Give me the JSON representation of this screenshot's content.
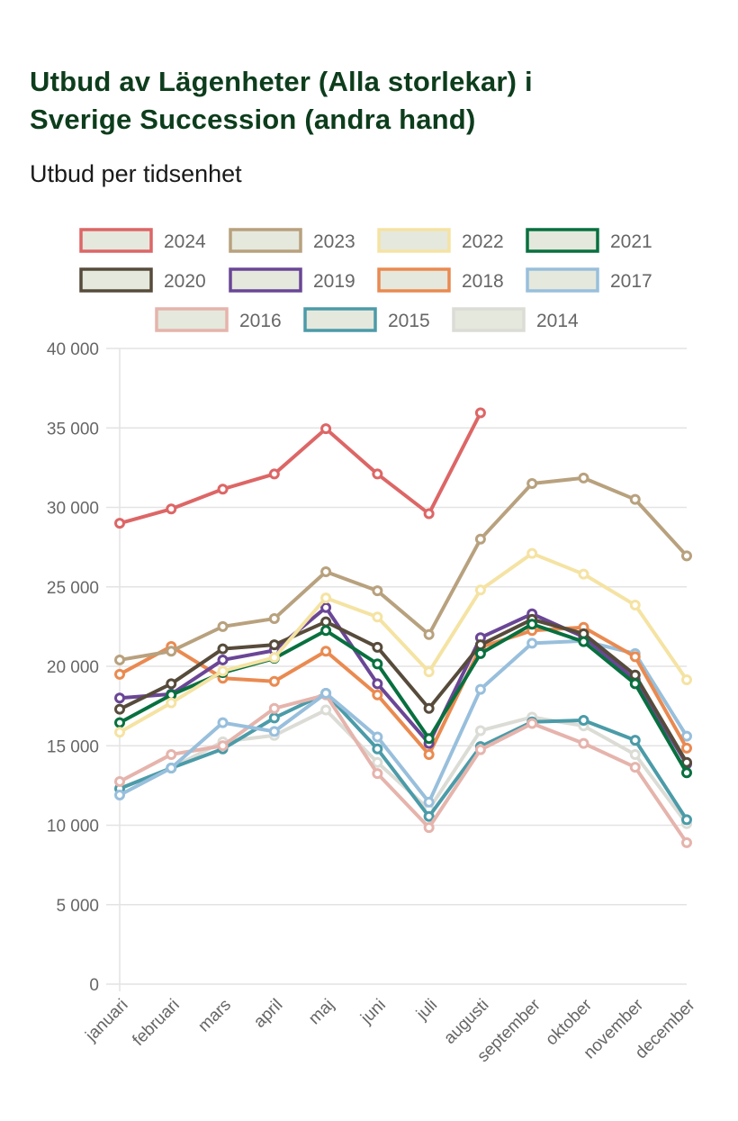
{
  "header": {
    "title_line1": "Utbud av Lägenheter (Alla storlekar) i",
    "title_line2": "Sverige Succession (andra hand)",
    "subtitle": "Utbud per tidsenhet"
  },
  "chart_data": {
    "type": "line",
    "title": "Utbud av Lägenheter (Alla storlekar) i Sverige Succession (andra hand)",
    "subtitle": "Utbud per tidsenhet",
    "xlabel": "",
    "ylabel": "",
    "ylim": [
      0,
      40000
    ],
    "yticks": [
      0,
      5000,
      10000,
      15000,
      20000,
      25000,
      30000,
      35000,
      40000
    ],
    "ytick_labels": [
      "0",
      "5 000",
      "10 000",
      "15 000",
      "20 000",
      "25 000",
      "30 000",
      "35 000",
      "40 000"
    ],
    "grid": true,
    "legend_position": "top",
    "categories": [
      "januari",
      "februari",
      "mars",
      "april",
      "maj",
      "juni",
      "juli",
      "augusti",
      "september",
      "oktober",
      "november",
      "december"
    ],
    "series": [
      {
        "name": "2024",
        "color": "#dd6666",
        "values": [
          29000,
          29900,
          31150,
          32100,
          34950,
          32100,
          29600,
          35950,
          null,
          null,
          null,
          null
        ]
      },
      {
        "name": "2023",
        "color": "#b8a17e",
        "values": [
          20400,
          20950,
          22500,
          23000,
          25950,
          24750,
          22000,
          28000,
          31500,
          31850,
          30500,
          26950
        ]
      },
      {
        "name": "2022",
        "color": "#f5e3a3",
        "values": [
          15850,
          17700,
          19700,
          20550,
          24300,
          23100,
          19650,
          24800,
          27100,
          25800,
          23850,
          19150
        ]
      },
      {
        "name": "2021",
        "color": "#08703f",
        "values": [
          16450,
          18200,
          19600,
          20500,
          22250,
          20150,
          15450,
          20800,
          22650,
          21550,
          18900,
          13300
        ]
      },
      {
        "name": "2020",
        "color": "#574b3b",
        "values": [
          17300,
          18900,
          21100,
          21350,
          22800,
          21200,
          17350,
          21350,
          22950,
          22050,
          19450,
          13950
        ]
      },
      {
        "name": "2019",
        "color": "#6a4696",
        "values": [
          18000,
          18250,
          20400,
          21000,
          23700,
          18900,
          15150,
          21800,
          23300,
          21850,
          19150,
          13850
        ]
      },
      {
        "name": "2018",
        "color": "#ea8a50",
        "values": [
          19500,
          21250,
          19250,
          19050,
          20950,
          18200,
          14450,
          21200,
          22250,
          22450,
          20600,
          14850
        ]
      },
      {
        "name": "2017",
        "color": "#98bfdc",
        "values": [
          11900,
          13600,
          16450,
          15900,
          18300,
          15550,
          11450,
          18550,
          21450,
          21600,
          20800,
          15600
        ]
      },
      {
        "name": "2016",
        "color": "#e5b4ac",
        "values": [
          12750,
          14450,
          15000,
          17350,
          18200,
          13250,
          9850,
          14750,
          16400,
          15150,
          13650,
          8900
        ]
      },
      {
        "name": "2015",
        "color": "#4b9ba8",
        "values": [
          12300,
          13600,
          14800,
          16750,
          18300,
          14800,
          10550,
          14950,
          16500,
          16600,
          15350,
          10350
        ]
      },
      {
        "name": "2014",
        "color": "#dcdcd6",
        "values": [
          12300,
          13600,
          15250,
          15650,
          17250,
          13950,
          11000,
          15950,
          16800,
          16250,
          14450,
          10100
        ]
      }
    ],
    "legend_fill": "#e5e8dc"
  }
}
